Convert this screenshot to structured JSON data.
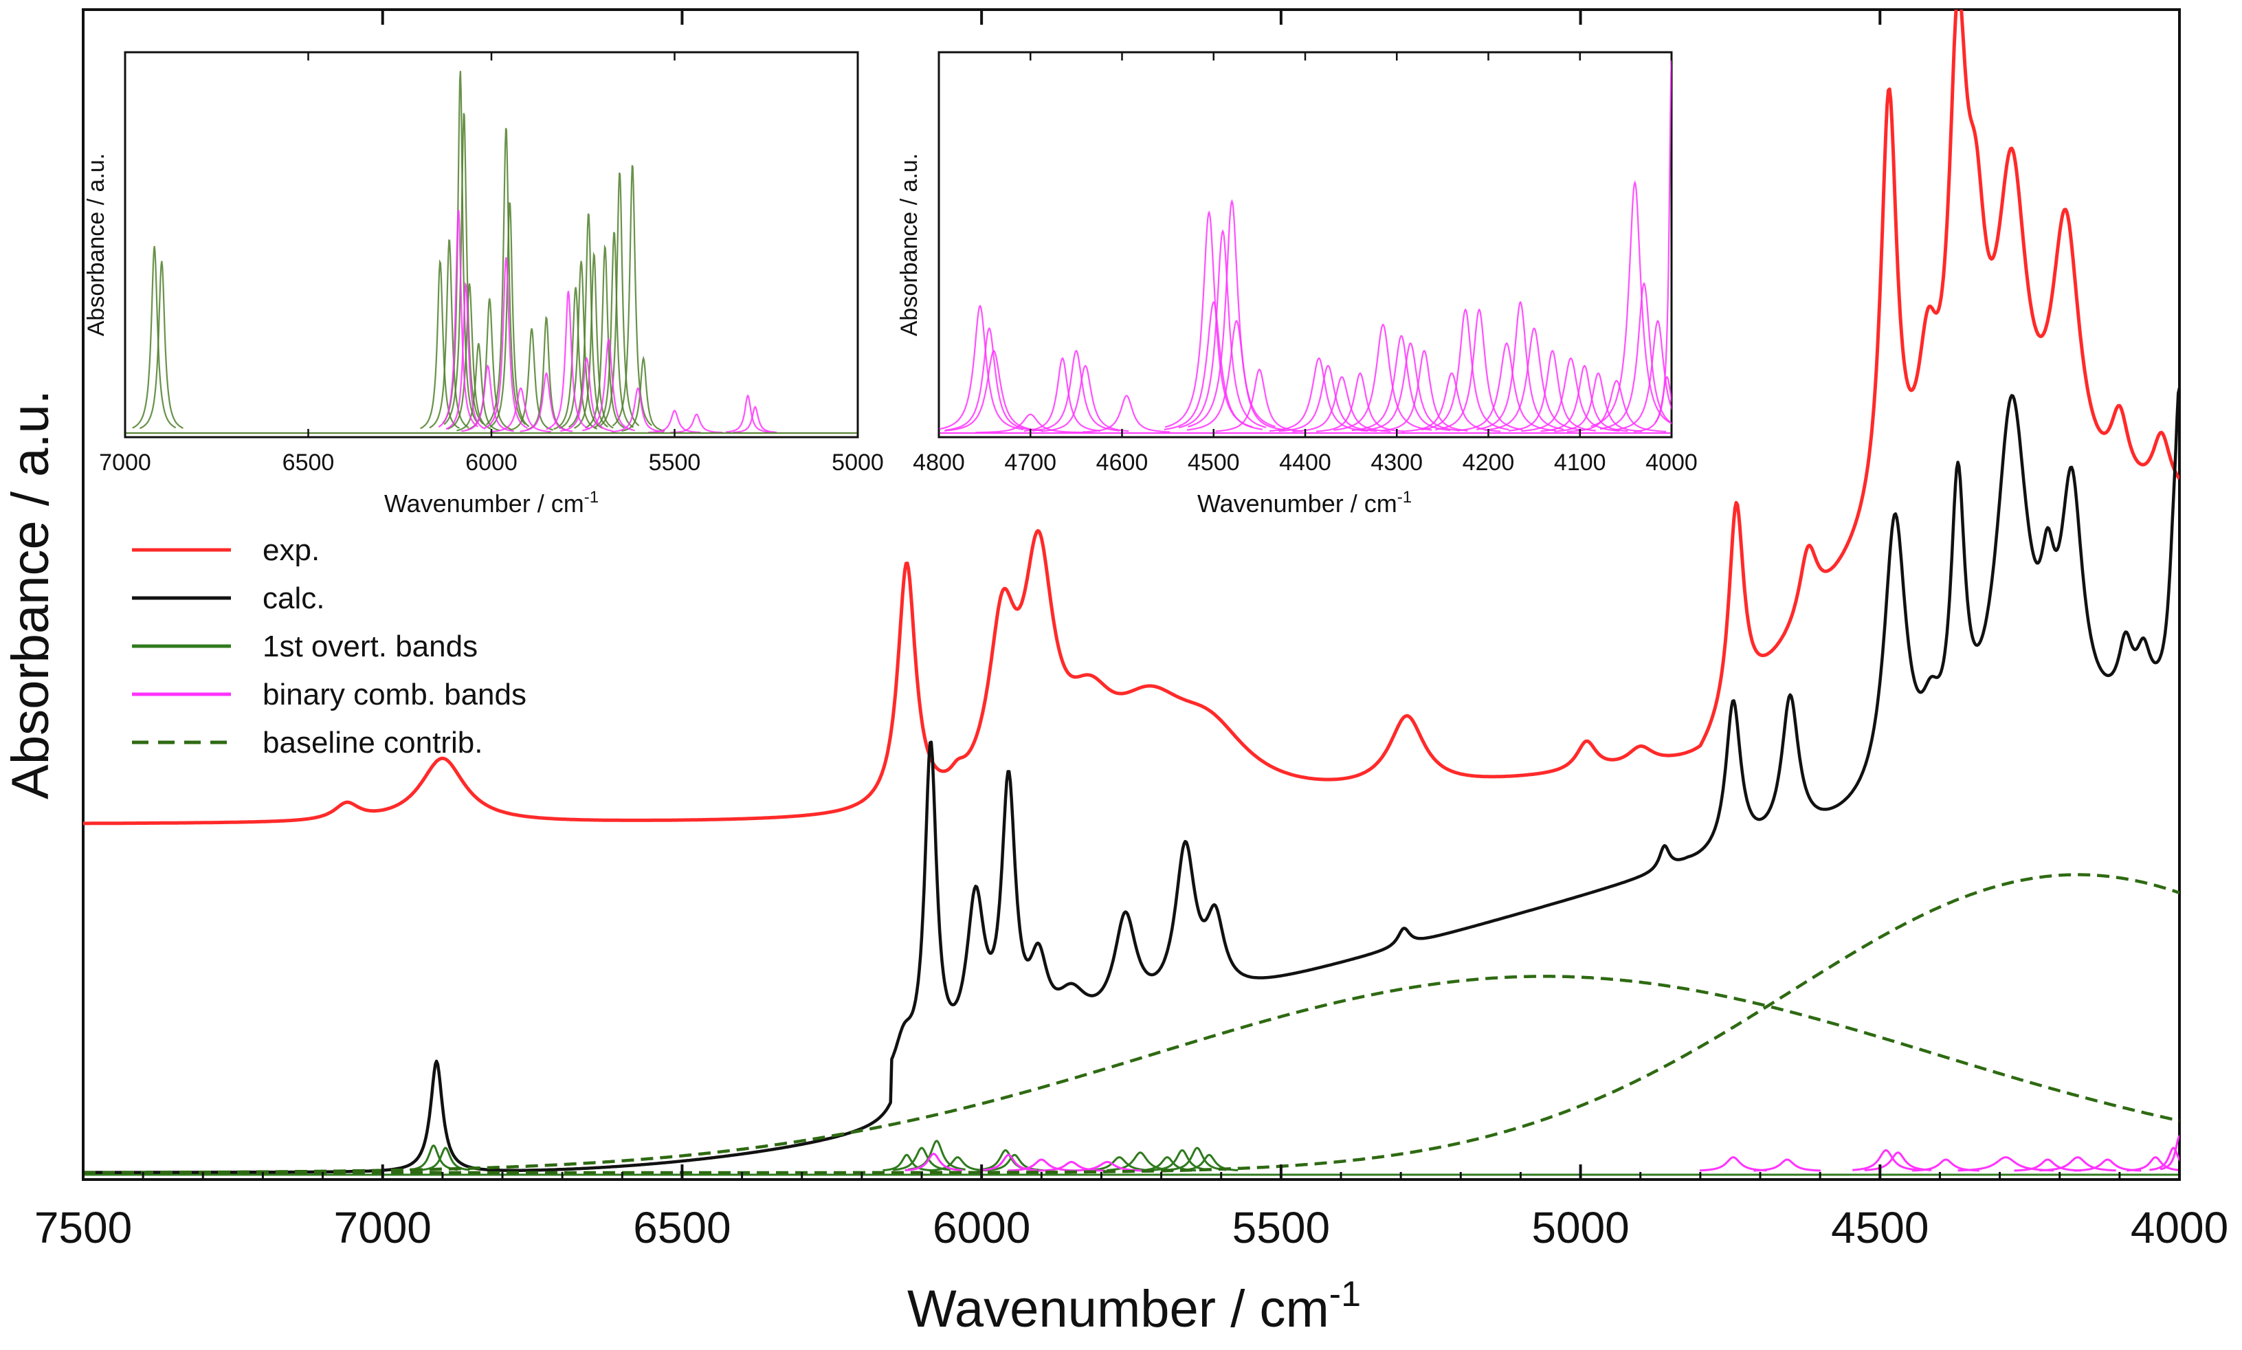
{
  "colors": {
    "exp": "#ff2a2a",
    "calc": "#111111",
    "overtone": "#2f7a1e",
    "overtone_inset": "#4f7f2a",
    "combination": "#ff33ff",
    "baseline": "#2e6a12"
  },
  "chart_data": [
    {
      "id": "main",
      "type": "line",
      "xlabel": "Wavenumber / cm",
      "xlabel_sup": "-1",
      "ylabel": "Absorbance / a.u.",
      "xlim": [
        7500,
        4000
      ],
      "ylim": [
        0,
        1
      ],
      "x_ticks": [
        7500,
        7000,
        6500,
        6000,
        5500,
        5000,
        4500,
        4000
      ],
      "x_tick_labels": [
        "7500",
        "7000",
        "6500",
        "6000",
        "5500",
        "5000",
        "4500",
        "4000"
      ],
      "legend": {
        "position": "left",
        "entries": [
          {
            "label": "exp.",
            "series": "exp",
            "style": "solid"
          },
          {
            "label": "calc.",
            "series": "calc",
            "style": "solid"
          },
          {
            "label": "1st overt. bands",
            "series": "overtone",
            "style": "solid"
          },
          {
            "label": "binary comb. bands",
            "series": "combination",
            "style": "solid"
          },
          {
            "label": "baseline contrib.",
            "series": "baseline",
            "style": "dashed"
          }
        ]
      },
      "series": [
        {
          "name": "exp",
          "style": "solid",
          "base": 0.298,
          "slope": 0.0,
          "pieces": [
            {
              "type": "ramp",
              "start": 6150,
              "end": 4000,
              "height": 0.1,
              "power": 1.5
            },
            {
              "type": "ramp",
              "start": 4800,
              "end": 4500,
              "height": 0.17,
              "power": 1.0
            }
          ],
          "peaks": [
            [
              7060,
              0.014,
              25
            ],
            [
              6900,
              0.055,
              45
            ],
            [
              6125,
              0.21,
              18
            ],
            [
              6040,
              0.01,
              15
            ],
            [
              5965,
              0.14,
              28
            ],
            [
              5905,
              0.19,
              30
            ],
            [
              5820,
              0.06,
              50
            ],
            [
              5720,
              0.07,
              80
            ],
            [
              5620,
              0.05,
              80
            ],
            [
              5290,
              0.06,
              35
            ],
            [
              4990,
              0.025,
              20
            ],
            [
              4900,
              0.015,
              25
            ],
            [
              4740,
              0.18,
              15
            ],
            [
              4620,
              0.06,
              18
            ],
            [
              4485,
              0.36,
              16
            ],
            [
              4420,
              0.11,
              20
            ],
            [
              4370,
              0.36,
              18
            ],
            [
              4340,
              0.17,
              20
            ],
            [
              4280,
              0.27,
              30
            ],
            [
              4190,
              0.23,
              28
            ],
            [
              4100,
              0.06,
              18
            ],
            [
              4030,
              0.05,
              18
            ]
          ]
        },
        {
          "name": "calc",
          "style": "solid",
          "base": 0.0,
          "slope": 0.0,
          "pieces": [
            {
              "type": "ramp",
              "start": 6900,
              "end": 6150,
              "height": 0.035,
              "power": 2.2
            },
            {
              "type": "line",
              "start": 6150,
              "end": 4820,
              "y0": 0.035,
              "y1": 0.225
            },
            {
              "type": "ramp",
              "start": 4820,
              "end": 4000,
              "height": 0.14,
              "power": 1.3
            }
          ],
          "peaks": [
            [
              6910,
              0.095,
              12
            ],
            [
              6130,
              0.03,
              18
            ],
            [
              6085,
              0.275,
              12
            ],
            [
              6010,
              0.13,
              18
            ],
            [
              5955,
              0.22,
              14
            ],
            [
              5905,
              0.06,
              18
            ],
            [
              5850,
              0.03,
              30
            ],
            [
              5760,
              0.085,
              22
            ],
            [
              5660,
              0.13,
              20
            ],
            [
              5610,
              0.06,
              18
            ],
            [
              5295,
              0.015,
              12
            ],
            [
              4860,
              0.02,
              10
            ],
            [
              4745,
              0.13,
              15
            ],
            [
              4650,
              0.12,
              17
            ],
            [
              4475,
              0.24,
              22
            ],
            [
              4415,
              0.04,
              18
            ],
            [
              4370,
              0.23,
              14
            ],
            [
              4280,
              0.3,
              32
            ],
            [
              4220,
              0.08,
              14
            ],
            [
              4180,
              0.2,
              22
            ],
            [
              4090,
              0.05,
              14
            ],
            [
              4060,
              0.04,
              14
            ],
            [
              4010,
              0.08,
              10
            ],
            [
              4000,
              0.22,
              8
            ]
          ]
        },
        {
          "name": "baseline-1",
          "style": "dashed",
          "base": 0.0,
          "slope": 0.0,
          "gauss": [
            [
              5060,
              0.168,
              650
            ]
          ],
          "peaks": []
        },
        {
          "name": "baseline-2",
          "style": "dashed",
          "base": 0.0,
          "slope": 0.0,
          "gauss": [
            [
              4170,
              0.255,
              480
            ]
          ],
          "peaks": []
        }
      ],
      "band_groups": [
        {
          "name": "overtone",
          "fill": false,
          "bands": [
            [
              6915,
              0.022,
              10
            ],
            [
              6895,
              0.02,
              10
            ],
            [
              6100,
              0.02,
              12
            ],
            [
              6075,
              0.026,
              12
            ],
            [
              6125,
              0.014,
              10
            ],
            [
              6040,
              0.012,
              12
            ],
            [
              5960,
              0.018,
              12
            ],
            [
              5945,
              0.014,
              12
            ],
            [
              5770,
              0.012,
              14
            ],
            [
              5735,
              0.016,
              14
            ],
            [
              5690,
              0.012,
              12
            ],
            [
              5665,
              0.018,
              12
            ],
            [
              5640,
              0.02,
              12
            ],
            [
              5620,
              0.014,
              12
            ]
          ]
        },
        {
          "name": "combination",
          "fill": false,
          "bands": [
            [
              6080,
              0.015,
              12
            ],
            [
              5955,
              0.014,
              12
            ],
            [
              5900,
              0.01,
              14
            ],
            [
              5850,
              0.008,
              14
            ],
            [
              5790,
              0.008,
              16
            ],
            [
              4745,
              0.012,
              14
            ],
            [
              4655,
              0.01,
              14
            ],
            [
              4490,
              0.018,
              14
            ],
            [
              4470,
              0.016,
              14
            ],
            [
              4390,
              0.01,
              14
            ],
            [
              4290,
              0.012,
              20
            ],
            [
              4220,
              0.01,
              14
            ],
            [
              4170,
              0.012,
              16
            ],
            [
              4120,
              0.01,
              14
            ],
            [
              4040,
              0.012,
              12
            ],
            [
              4010,
              0.02,
              10
            ],
            [
              4000,
              0.03,
              8
            ]
          ]
        }
      ]
    },
    {
      "id": "inset1",
      "type": "line",
      "xlabel": "Wavenumber / cm",
      "xlabel_sup": "-1",
      "ylabel": "Absorbance / a.u.",
      "xlim": [
        7000,
        5000
      ],
      "ylim": [
        0,
        1
      ],
      "x_ticks": [
        7000,
        6500,
        6000,
        5500,
        5000
      ],
      "x_tick_labels": [
        "7000",
        "6500",
        "6000",
        "5500",
        "5000"
      ],
      "band_groups": [
        {
          "name": "overtone",
          "bands": [
            [
              6920,
              0.5,
              10
            ],
            [
              6900,
              0.46,
              10
            ],
            [
              6140,
              0.46,
              9
            ],
            [
              6115,
              0.52,
              9
            ],
            [
              6085,
              0.97,
              8
            ],
            [
              6075,
              0.86,
              9
            ],
            [
              6060,
              0.4,
              10
            ],
            [
              6035,
              0.24,
              10
            ],
            [
              6005,
              0.36,
              10
            ],
            [
              5960,
              0.82,
              9
            ],
            [
              5950,
              0.62,
              9
            ],
            [
              5890,
              0.28,
              10
            ],
            [
              5850,
              0.31,
              9
            ],
            [
              5770,
              0.39,
              10
            ],
            [
              5755,
              0.46,
              10
            ],
            [
              5735,
              0.59,
              9
            ],
            [
              5720,
              0.48,
              9
            ],
            [
              5690,
              0.5,
              9
            ],
            [
              5665,
              0.54,
              9
            ],
            [
              5650,
              0.7,
              9
            ],
            [
              5615,
              0.72,
              9
            ],
            [
              5585,
              0.2,
              10
            ]
          ]
        },
        {
          "name": "combination",
          "bands": [
            [
              6090,
              0.6,
              9
            ],
            [
              6070,
              0.4,
              9
            ],
            [
              6010,
              0.18,
              12
            ],
            [
              5960,
              0.47,
              10
            ],
            [
              5920,
              0.12,
              14
            ],
            [
              5850,
              0.16,
              12
            ],
            [
              5790,
              0.38,
              10
            ],
            [
              5740,
              0.2,
              12
            ],
            [
              5680,
              0.25,
              12
            ],
            [
              5600,
              0.12,
              12
            ],
            [
              5500,
              0.06,
              12
            ],
            [
              5440,
              0.05,
              12
            ],
            [
              5300,
              0.1,
              10
            ],
            [
              5280,
              0.07,
              10
            ]
          ]
        }
      ]
    },
    {
      "id": "inset2",
      "type": "line",
      "xlabel": "Wavenumber / cm",
      "xlabel_sup": "-1",
      "ylabel": "Absorbance / a.u.",
      "xlim": [
        4800,
        4000
      ],
      "ylim": [
        0,
        1
      ],
      "x_ticks": [
        4800,
        4700,
        4600,
        4500,
        4400,
        4300,
        4200,
        4100,
        4000
      ],
      "x_tick_labels": [
        "4800",
        "4700",
        "4600",
        "4500",
        "4400",
        "4300",
        "4200",
        "4100",
        "4000"
      ],
      "band_groups": [
        {
          "name": "combination",
          "bands": [
            [
              4755,
              0.34,
              8
            ],
            [
              4745,
              0.28,
              8
            ],
            [
              4740,
              0.22,
              9
            ],
            [
              4700,
              0.05,
              10
            ],
            [
              4665,
              0.2,
              7
            ],
            [
              4650,
              0.22,
              8
            ],
            [
              4640,
              0.18,
              8
            ],
            [
              4595,
              0.1,
              8
            ],
            [
              4505,
              0.59,
              8
            ],
            [
              4490,
              0.54,
              8
            ],
            [
              4480,
              0.62,
              8
            ],
            [
              4500,
              0.35,
              9
            ],
            [
              4475,
              0.3,
              9
            ],
            [
              4450,
              0.17,
              8
            ],
            [
              4385,
              0.2,
              9
            ],
            [
              4375,
              0.18,
              9
            ],
            [
              4360,
              0.15,
              9
            ],
            [
              4340,
              0.16,
              8
            ],
            [
              4315,
              0.29,
              9
            ],
            [
              4295,
              0.26,
              9
            ],
            [
              4285,
              0.24,
              9
            ],
            [
              4270,
              0.22,
              8
            ],
            [
              4240,
              0.16,
              9
            ],
            [
              4225,
              0.33,
              8
            ],
            [
              4210,
              0.33,
              8
            ],
            [
              4180,
              0.24,
              9
            ],
            [
              4165,
              0.35,
              8
            ],
            [
              4150,
              0.28,
              9
            ],
            [
              4130,
              0.22,
              8
            ],
            [
              4110,
              0.2,
              9
            ],
            [
              4095,
              0.18,
              8
            ],
            [
              4080,
              0.16,
              8
            ],
            [
              4060,
              0.14,
              9
            ],
            [
              4040,
              0.67,
              8
            ],
            [
              4030,
              0.4,
              8
            ],
            [
              4015,
              0.3,
              8
            ],
            [
              4005,
              0.15,
              6
            ],
            [
              4000,
              1.0,
              3
            ]
          ]
        }
      ]
    }
  ]
}
